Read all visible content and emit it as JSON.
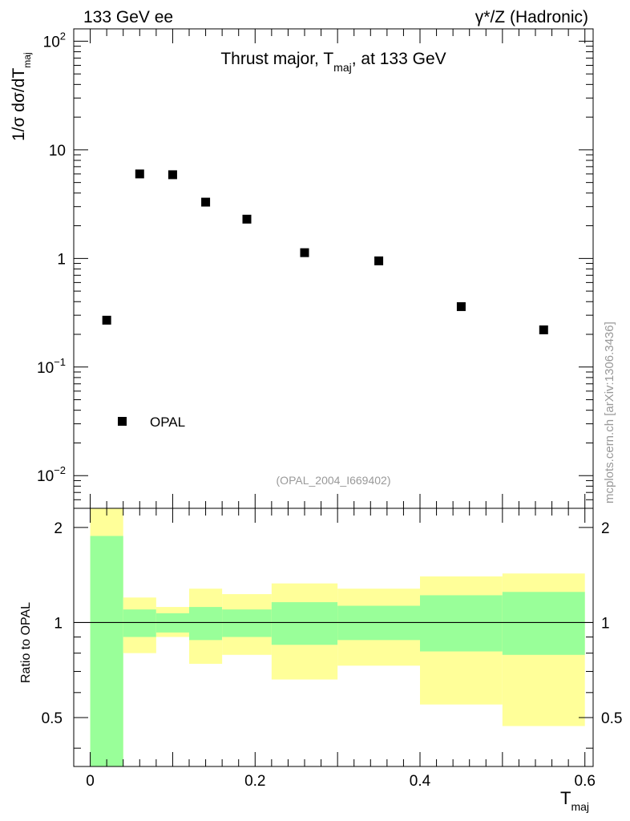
{
  "header": {
    "left": "133 GeV ee",
    "right": "γ*/Z (Hadronic)"
  },
  "side_label": "mcplots.cern.ch [arXiv:1306.3436]",
  "analysis_id": "(OPAL_2004_I669402)",
  "colors": {
    "inner_band": "#99ff99",
    "outer_band": "#ffff99",
    "marker": "#000000"
  },
  "chart_data": [
    {
      "type": "scatter",
      "title": "Thrust major, T_maj, at 133 GeV",
      "title_parts": {
        "pre": "Thrust major, T",
        "sub": "maj",
        "post": ", at 133 GeV"
      },
      "ylabel_parts": {
        "pre": "1/σ  dσ/dT",
        "sub": "maj"
      },
      "yscale": "log",
      "ylim": [
        0.005,
        130
      ],
      "xlim": [
        -0.02,
        0.61
      ],
      "ytick_labels": [
        "10",
        "1"
      ],
      "ytick_exp_labels": [
        {
          "value": 100,
          "base": "10",
          "exp": "2"
        },
        {
          "value": 0.1,
          "base": "10",
          "exp": "−1"
        },
        {
          "value": 0.01,
          "base": "10",
          "exp": "−2"
        }
      ],
      "series": [
        {
          "name": "OPAL",
          "marker": "square",
          "x": [
            0.02,
            0.06,
            0.1,
            0.14,
            0.19,
            0.26,
            0.35,
            0.45,
            0.55
          ],
          "y": [
            0.27,
            6.0,
            5.9,
            3.3,
            2.3,
            1.13,
            0.95,
            0.36,
            0.22
          ]
        }
      ],
      "legend": {
        "label": "OPAL",
        "placement": "bottom-left"
      }
    },
    {
      "type": "area",
      "ylabel": "Ratio to OPAL",
      "xlabel_parts": {
        "pre": "T",
        "sub": "maj"
      },
      "xlim": [
        -0.02,
        0.61
      ],
      "ylim": [
        0.35,
        2.3
      ],
      "xtick_labels": [
        "0",
        "0.2",
        "0.4",
        "0.6"
      ],
      "ytick_labels": [
        "0.5",
        "1",
        "2"
      ],
      "reference_line": 1,
      "bins": [
        {
          "x0": 0.0,
          "x1": 0.04,
          "inner": [
            0.35,
            1.88
          ],
          "outer": [
            0.35,
            2.3
          ]
        },
        {
          "x0": 0.04,
          "x1": 0.08,
          "inner": [
            0.9,
            1.1
          ],
          "outer": [
            0.8,
            1.2
          ]
        },
        {
          "x0": 0.08,
          "x1": 0.12,
          "inner": [
            0.93,
            1.07
          ],
          "outer": [
            0.9,
            1.12
          ]
        },
        {
          "x0": 0.12,
          "x1": 0.16,
          "inner": [
            0.88,
            1.12
          ],
          "outer": [
            0.74,
            1.28
          ]
        },
        {
          "x0": 0.16,
          "x1": 0.22,
          "inner": [
            0.9,
            1.1
          ],
          "outer": [
            0.79,
            1.23
          ]
        },
        {
          "x0": 0.22,
          "x1": 0.3,
          "inner": [
            0.85,
            1.16
          ],
          "outer": [
            0.66,
            1.33
          ]
        },
        {
          "x0": 0.3,
          "x1": 0.4,
          "inner": [
            0.88,
            1.13
          ],
          "outer": [
            0.73,
            1.28
          ]
        },
        {
          "x0": 0.4,
          "x1": 0.5,
          "inner": [
            0.81,
            1.22
          ],
          "outer": [
            0.55,
            1.4
          ]
        },
        {
          "x0": 0.5,
          "x1": 0.6,
          "inner": [
            0.79,
            1.25
          ],
          "outer": [
            0.47,
            1.43
          ]
        }
      ]
    }
  ]
}
